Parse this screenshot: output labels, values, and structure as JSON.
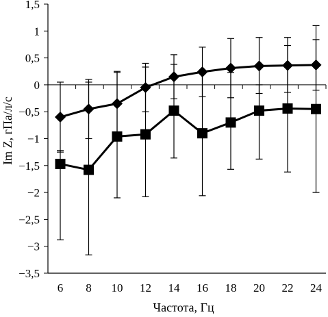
{
  "chart_data": {
    "type": "line",
    "xlabel": "Частота, Гц",
    "ylabel": "Im Z, гПа/л/с",
    "x": [
      6,
      8,
      10,
      12,
      14,
      16,
      18,
      20,
      22,
      24
    ],
    "x_tick_labels": [
      "6",
      "8",
      "10",
      "12",
      "14",
      "16",
      "18",
      "20",
      "22",
      "24"
    ],
    "ylim": [
      -3.5,
      1.5
    ],
    "y_ticks": [
      1.5,
      1,
      0.5,
      0,
      -0.5,
      -1,
      -1.5,
      -2,
      -2.5,
      -3,
      -3.5
    ],
    "y_tick_labels": [
      "1,5",
      "1",
      "0,5",
      "0",
      "−0,5",
      "−1",
      "−1,5",
      "−2",
      "−2,5",
      "−3",
      "−3,5"
    ],
    "grid": false,
    "legend": "none",
    "series": [
      {
        "marker": "diamond",
        "color": "#000000",
        "values": [
          -0.6,
          -0.45,
          -0.35,
          -0.05,
          0.15,
          0.24,
          0.31,
          0.35,
          0.36,
          0.37
        ],
        "err_upper": [
          0.05,
          0.1,
          0.25,
          0.4,
          0.56,
          0.7,
          0.86,
          0.88,
          0.88,
          1.1
        ],
        "err_lower": [
          -1.25,
          -1.0,
          -0.96,
          -0.5,
          -0.26,
          -0.22,
          -0.24,
          -0.16,
          -0.14,
          -0.1
        ]
      },
      {
        "marker": "square",
        "color": "#000000",
        "values": [
          -1.47,
          -1.58,
          -0.96,
          -0.92,
          -0.48,
          -0.9,
          -0.7,
          -0.48,
          -0.44,
          -0.45
        ],
        "err_upper": [
          -1.22,
          0.05,
          0.23,
          0.33,
          0.38,
          0.25,
          0.23,
          0.0,
          0.73,
          0.84
        ],
        "err_lower": [
          -2.88,
          -3.16,
          -2.1,
          -2.08,
          -1.36,
          -2.06,
          -1.57,
          -1.38,
          -1.62,
          -2.0
        ]
      }
    ]
  }
}
